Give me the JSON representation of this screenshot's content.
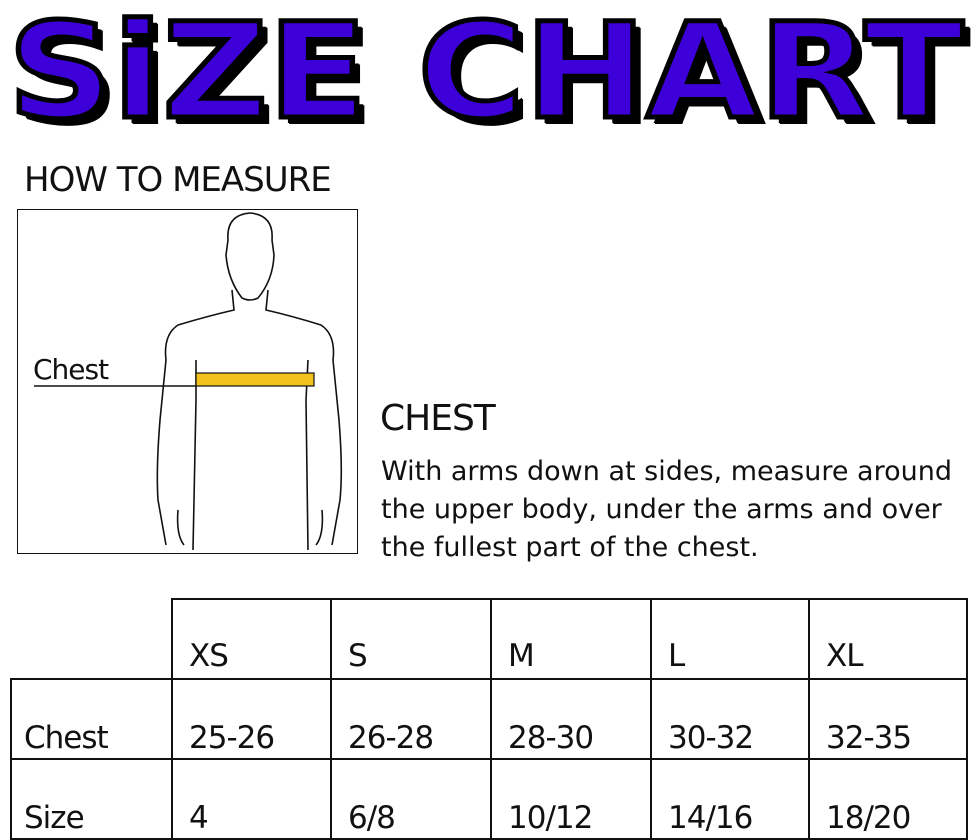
{
  "title": "SiZE CHART",
  "colors": {
    "title_fill": "#3d00d9",
    "title_outline": "#000000",
    "tape": "#f2c21b"
  },
  "how_to_measure": {
    "heading": "HOW TO MEASURE",
    "figure_label": "Chest"
  },
  "chest": {
    "heading": "CHEST",
    "description": "With arms down at sides, measure around the upper body, under the arms and over the fullest part of the chest."
  },
  "table": {
    "columns": [
      "XS",
      "S",
      "M",
      "L",
      "XL"
    ],
    "rows": [
      {
        "label": "Chest",
        "values": [
          "25-26",
          "26-28",
          "28-30",
          "30-32",
          "32-35"
        ]
      },
      {
        "label": "Size",
        "values": [
          "4",
          "6/8",
          "10/12",
          "14/16",
          "18/20"
        ]
      }
    ]
  }
}
